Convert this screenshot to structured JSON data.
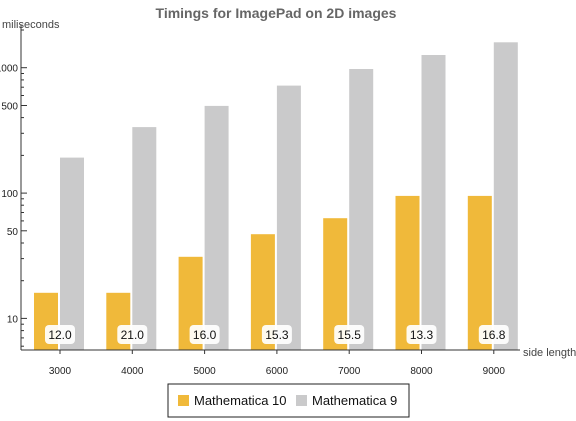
{
  "chart_data": {
    "type": "bar",
    "title": "Timings for ImagePad on 2D images",
    "ylabel": "miliseconds",
    "xlabel": "side length",
    "y_scale": "log",
    "ylim": [
      5.6,
      2000
    ],
    "y_ticks_major": [
      10,
      50,
      100,
      500,
      1000
    ],
    "y_ticks_major_labels": [
      "10",
      "50",
      "100",
      "500",
      "1000"
    ],
    "y_ticks_minor": [
      6,
      7,
      8,
      9,
      20,
      30,
      40,
      60,
      70,
      80,
      90,
      200,
      300,
      400,
      600,
      700,
      800,
      900,
      2000
    ],
    "categories": [
      "3000",
      "4000",
      "5000",
      "6000",
      "7000",
      "8000",
      "9000"
    ],
    "series": [
      {
        "name": "Mathematica 10",
        "color": "#f0b93a",
        "values": [
          16,
          16,
          31,
          47,
          63,
          95,
          95
        ]
      },
      {
        "name": "Mathematica 9",
        "color": "#cacacb",
        "values": [
          192,
          336,
          496,
          720,
          977,
          1264,
          1596
        ]
      }
    ],
    "ratio_labels": [
      "12.0",
      "21.0",
      "16.0",
      "15.3",
      "15.5",
      "13.3",
      "16.8"
    ],
    "legend_position": "bottom"
  }
}
